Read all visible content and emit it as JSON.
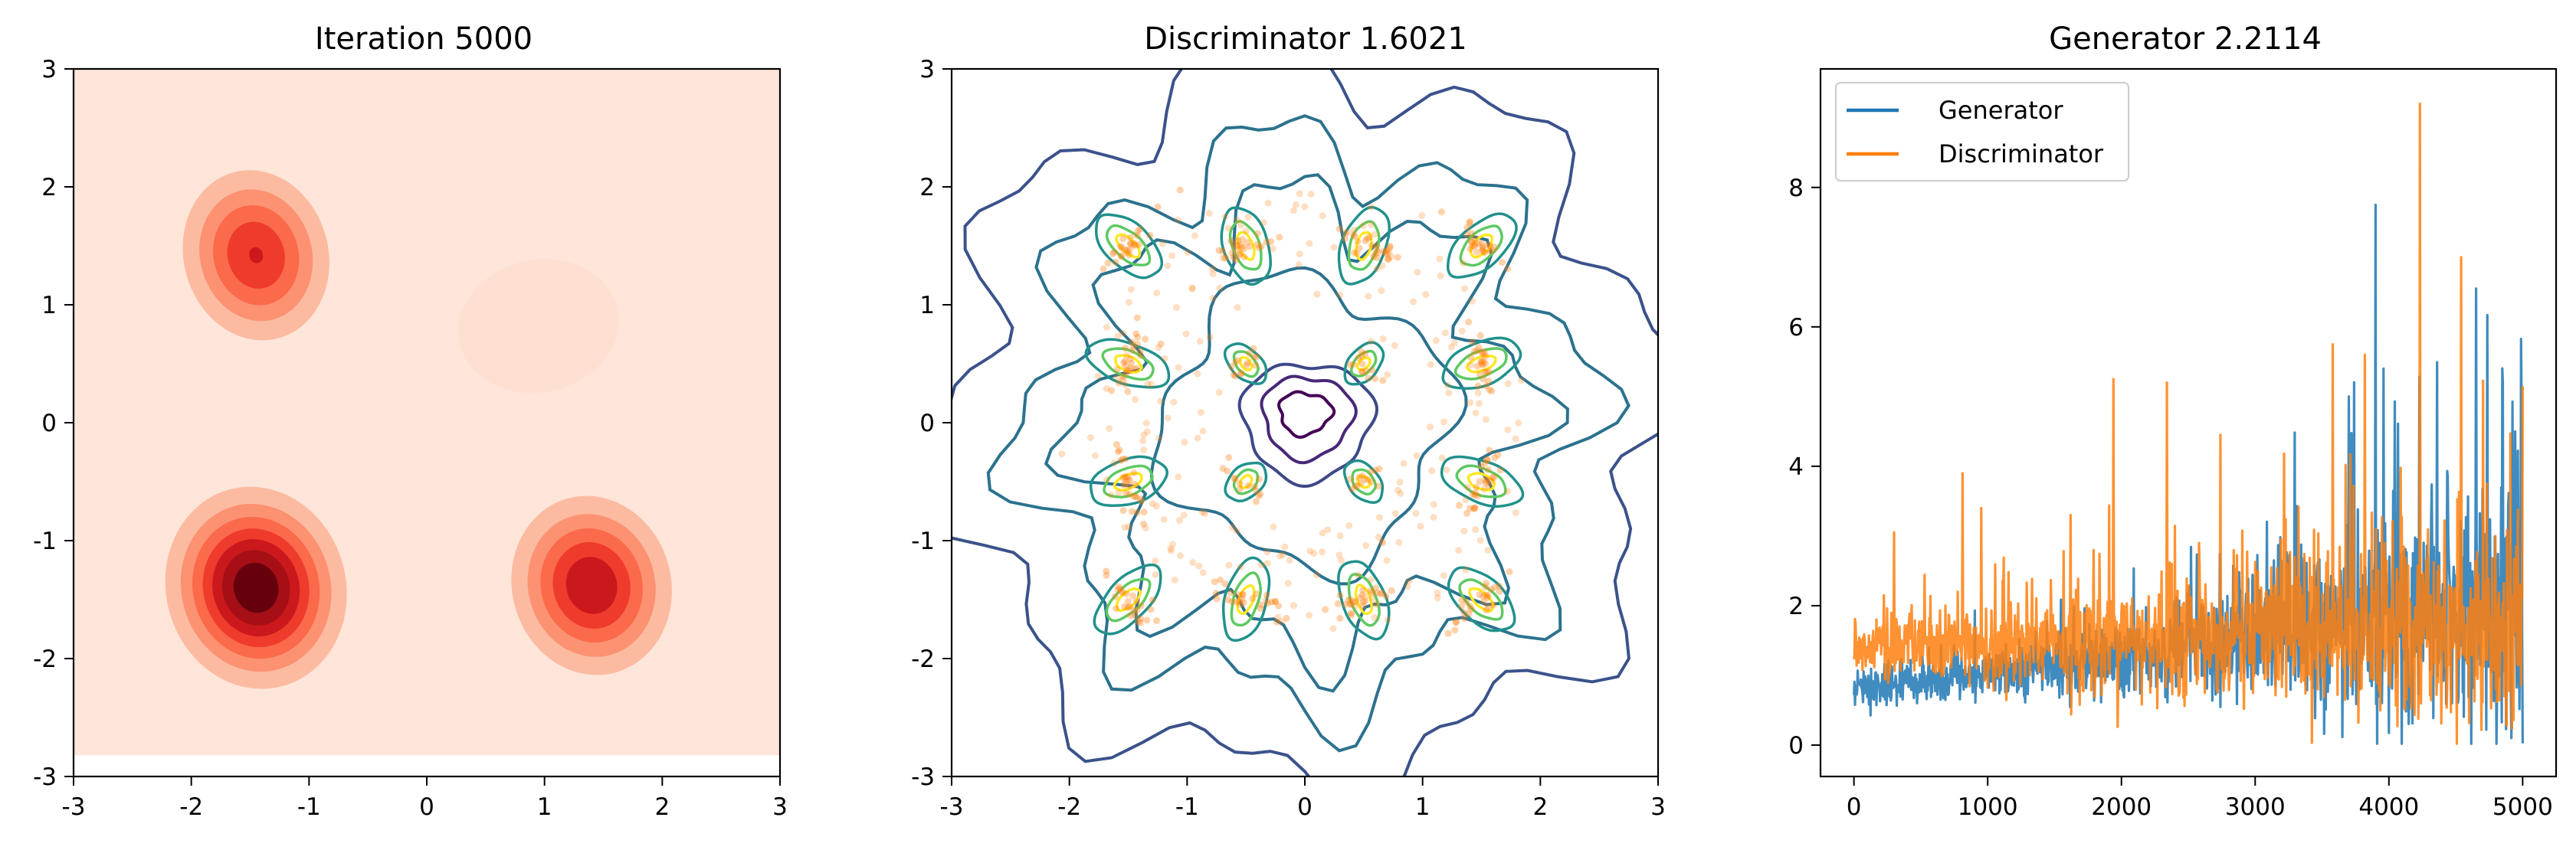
{
  "figure": {
    "panels": [
      {
        "title": "Iteration 5000"
      },
      {
        "title": "Discriminator 1.6021"
      },
      {
        "title": "Generator 2.2114"
      }
    ]
  },
  "chart_data": [
    {
      "type": "heatmap",
      "title": "Iteration 5000",
      "subtype": "filled-contour density (Reds colormap)",
      "xlim": [
        -3,
        3
      ],
      "ylim": [
        -3,
        3
      ],
      "xticks": [
        "-3",
        "-2",
        "-1",
        "0",
        "1",
        "2",
        "3"
      ],
      "yticks": [
        "-3",
        "-2",
        "-1",
        "0",
        "1",
        "2",
        "3"
      ],
      "grid": false,
      "modes": [
        {
          "x": -1.45,
          "y": 1.42,
          "peak": 0.55,
          "sx": 0.42,
          "sy": 0.46
        },
        {
          "x": -1.45,
          "y": -1.4,
          "peak": 1.0,
          "sx": 0.46,
          "sy": 0.48
        },
        {
          "x": 1.4,
          "y": -1.38,
          "peak": 0.68,
          "sx": 0.44,
          "sy": 0.46
        },
        {
          "x": 0.95,
          "y": 0.82,
          "peak": 0.05,
          "sx": 0.55,
          "sy": 0.45
        }
      ],
      "colors": [
        "#fee5d9",
        "#fcbba1",
        "#fc9272",
        "#fb6a4a",
        "#ef3b2c",
        "#cb181d",
        "#a50f15",
        "#67000d"
      ]
    },
    {
      "type": "scatter",
      "title": "Discriminator 1.6021",
      "subtype": "contour lines (viridis) with generated samples",
      "xlim": [
        -3,
        3
      ],
      "ylim": [
        -3,
        3
      ],
      "xticks": [
        "-3",
        "-2",
        "-1",
        "0",
        "1",
        "2",
        "3"
      ],
      "yticks": [
        "-3",
        "-2",
        "-1",
        "0",
        "1",
        "2",
        "3"
      ],
      "grid": false,
      "real_modes": [
        {
          "x": 1.5,
          "y": 1.5
        },
        {
          "x": 0.5,
          "y": 1.5
        },
        {
          "x": -0.5,
          "y": 1.5
        },
        {
          "x": -1.5,
          "y": 1.5
        },
        {
          "x": 1.5,
          "y": 0.5
        },
        {
          "x": 0.5,
          "y": 0.5
        },
        {
          "x": -0.5,
          "y": 0.5
        },
        {
          "x": -1.5,
          "y": 0.5
        },
        {
          "x": 1.5,
          "y": -0.5
        },
        {
          "x": 0.5,
          "y": -0.5
        },
        {
          "x": -0.5,
          "y": -0.5
        },
        {
          "x": -1.5,
          "y": -0.5
        },
        {
          "x": 1.5,
          "y": -1.5
        },
        {
          "x": 0.5,
          "y": -1.5
        },
        {
          "x": -0.5,
          "y": -1.5
        },
        {
          "x": -1.5,
          "y": -1.5
        }
      ],
      "sample_color": "#ff7f0e",
      "contour_colors": [
        "#3b528b",
        "#2c728e",
        "#21918c",
        "#28ae80",
        "#5ec962",
        "#addc30",
        "#fde725"
      ],
      "inner_colors": [
        "#440154",
        "#482878",
        "#3e4989"
      ]
    },
    {
      "type": "line",
      "title": "Generator 2.2114",
      "x_range": [
        0,
        5000
      ],
      "xlim": [
        -250,
        5250
      ],
      "ylim": [
        -0.45,
        9.7
      ],
      "xticks": [
        "0",
        "1000",
        "2000",
        "3000",
        "4000",
        "5000"
      ],
      "yticks": [
        "0",
        "2",
        "4",
        "6",
        "8"
      ],
      "grid": false,
      "legend_position": "top-left",
      "series": [
        {
          "name": "Generator",
          "color": "#1f77b4",
          "samples": 5000,
          "envelope": {
            "start_mean": 0.8,
            "end_mean": 2.0,
            "max_spike": 7.75
          },
          "peaks": [
            [
              3900,
              7.75
            ],
            [
              4650,
              6.55
            ],
            [
              3960,
              5.4
            ],
            [
              3700,
              5.0
            ],
            [
              4850,
              5.2
            ]
          ]
        },
        {
          "name": "Discriminator",
          "color": "#ff7f0e",
          "samples": 5000,
          "envelope": {
            "start_mean": 1.4,
            "end_mean": 1.6,
            "max_spike": 9.2
          },
          "peaks": [
            [
              4230,
              9.2
            ],
            [
              4540,
              7.0
            ],
            [
              3580,
              5.75
            ],
            [
              3820,
              5.6
            ],
            [
              5000,
              5.15
            ],
            [
              1940,
              5.25
            ],
            [
              2340,
              5.2
            ],
            [
              2740,
              4.45
            ],
            [
              810,
              3.9
            ],
            [
              950,
              3.4
            ],
            [
              300,
              3.05
            ],
            [
              1620,
              3.3
            ]
          ]
        }
      ]
    }
  ]
}
